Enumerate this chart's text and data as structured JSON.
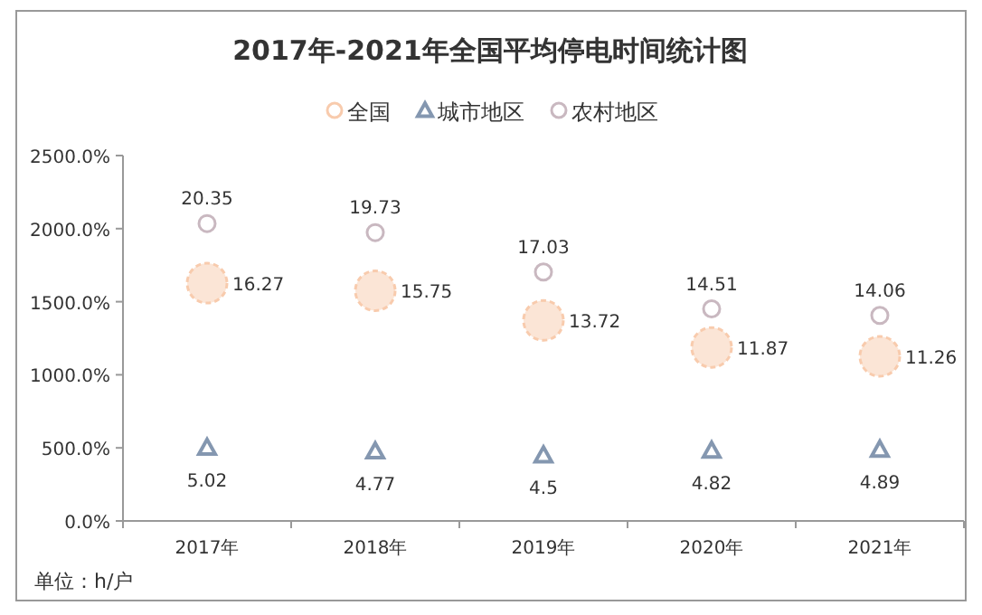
{
  "chart_data": {
    "type": "scatter",
    "title": "2017年-2021年全国平均停电时间统计图",
    "categories": [
      "2017年",
      "2018年",
      "2019年",
      "2020年",
      "2021年"
    ],
    "series": [
      {
        "name": "全国",
        "color": "#f8cbad",
        "marker": "circle",
        "values": [
          16.27,
          15.75,
          13.72,
          11.87,
          11.26
        ]
      },
      {
        "name": "城市地区",
        "color": "#8497b0",
        "marker": "triangle",
        "values": [
          5.02,
          4.77,
          4.5,
          4.82,
          4.89
        ]
      },
      {
        "name": "农村地区",
        "color": "#c9b8c0",
        "marker": "circle",
        "values": [
          20.35,
          19.73,
          17.03,
          14.51,
          14.06
        ]
      }
    ],
    "ylim": [
      0,
      25
    ],
    "yticks": [
      {
        "value": 0,
        "label": "0.0%"
      },
      {
        "value": 5,
        "label": "500.0%"
      },
      {
        "value": 10,
        "label": "1000.0%"
      },
      {
        "value": 15,
        "label": "1500.0%"
      },
      {
        "value": 20,
        "label": "2000.0%"
      },
      {
        "value": 25,
        "label": "2500.0%"
      }
    ],
    "data_labels": true,
    "legend": "top",
    "grid": false,
    "annotations": [
      "单位：h/户"
    ]
  }
}
